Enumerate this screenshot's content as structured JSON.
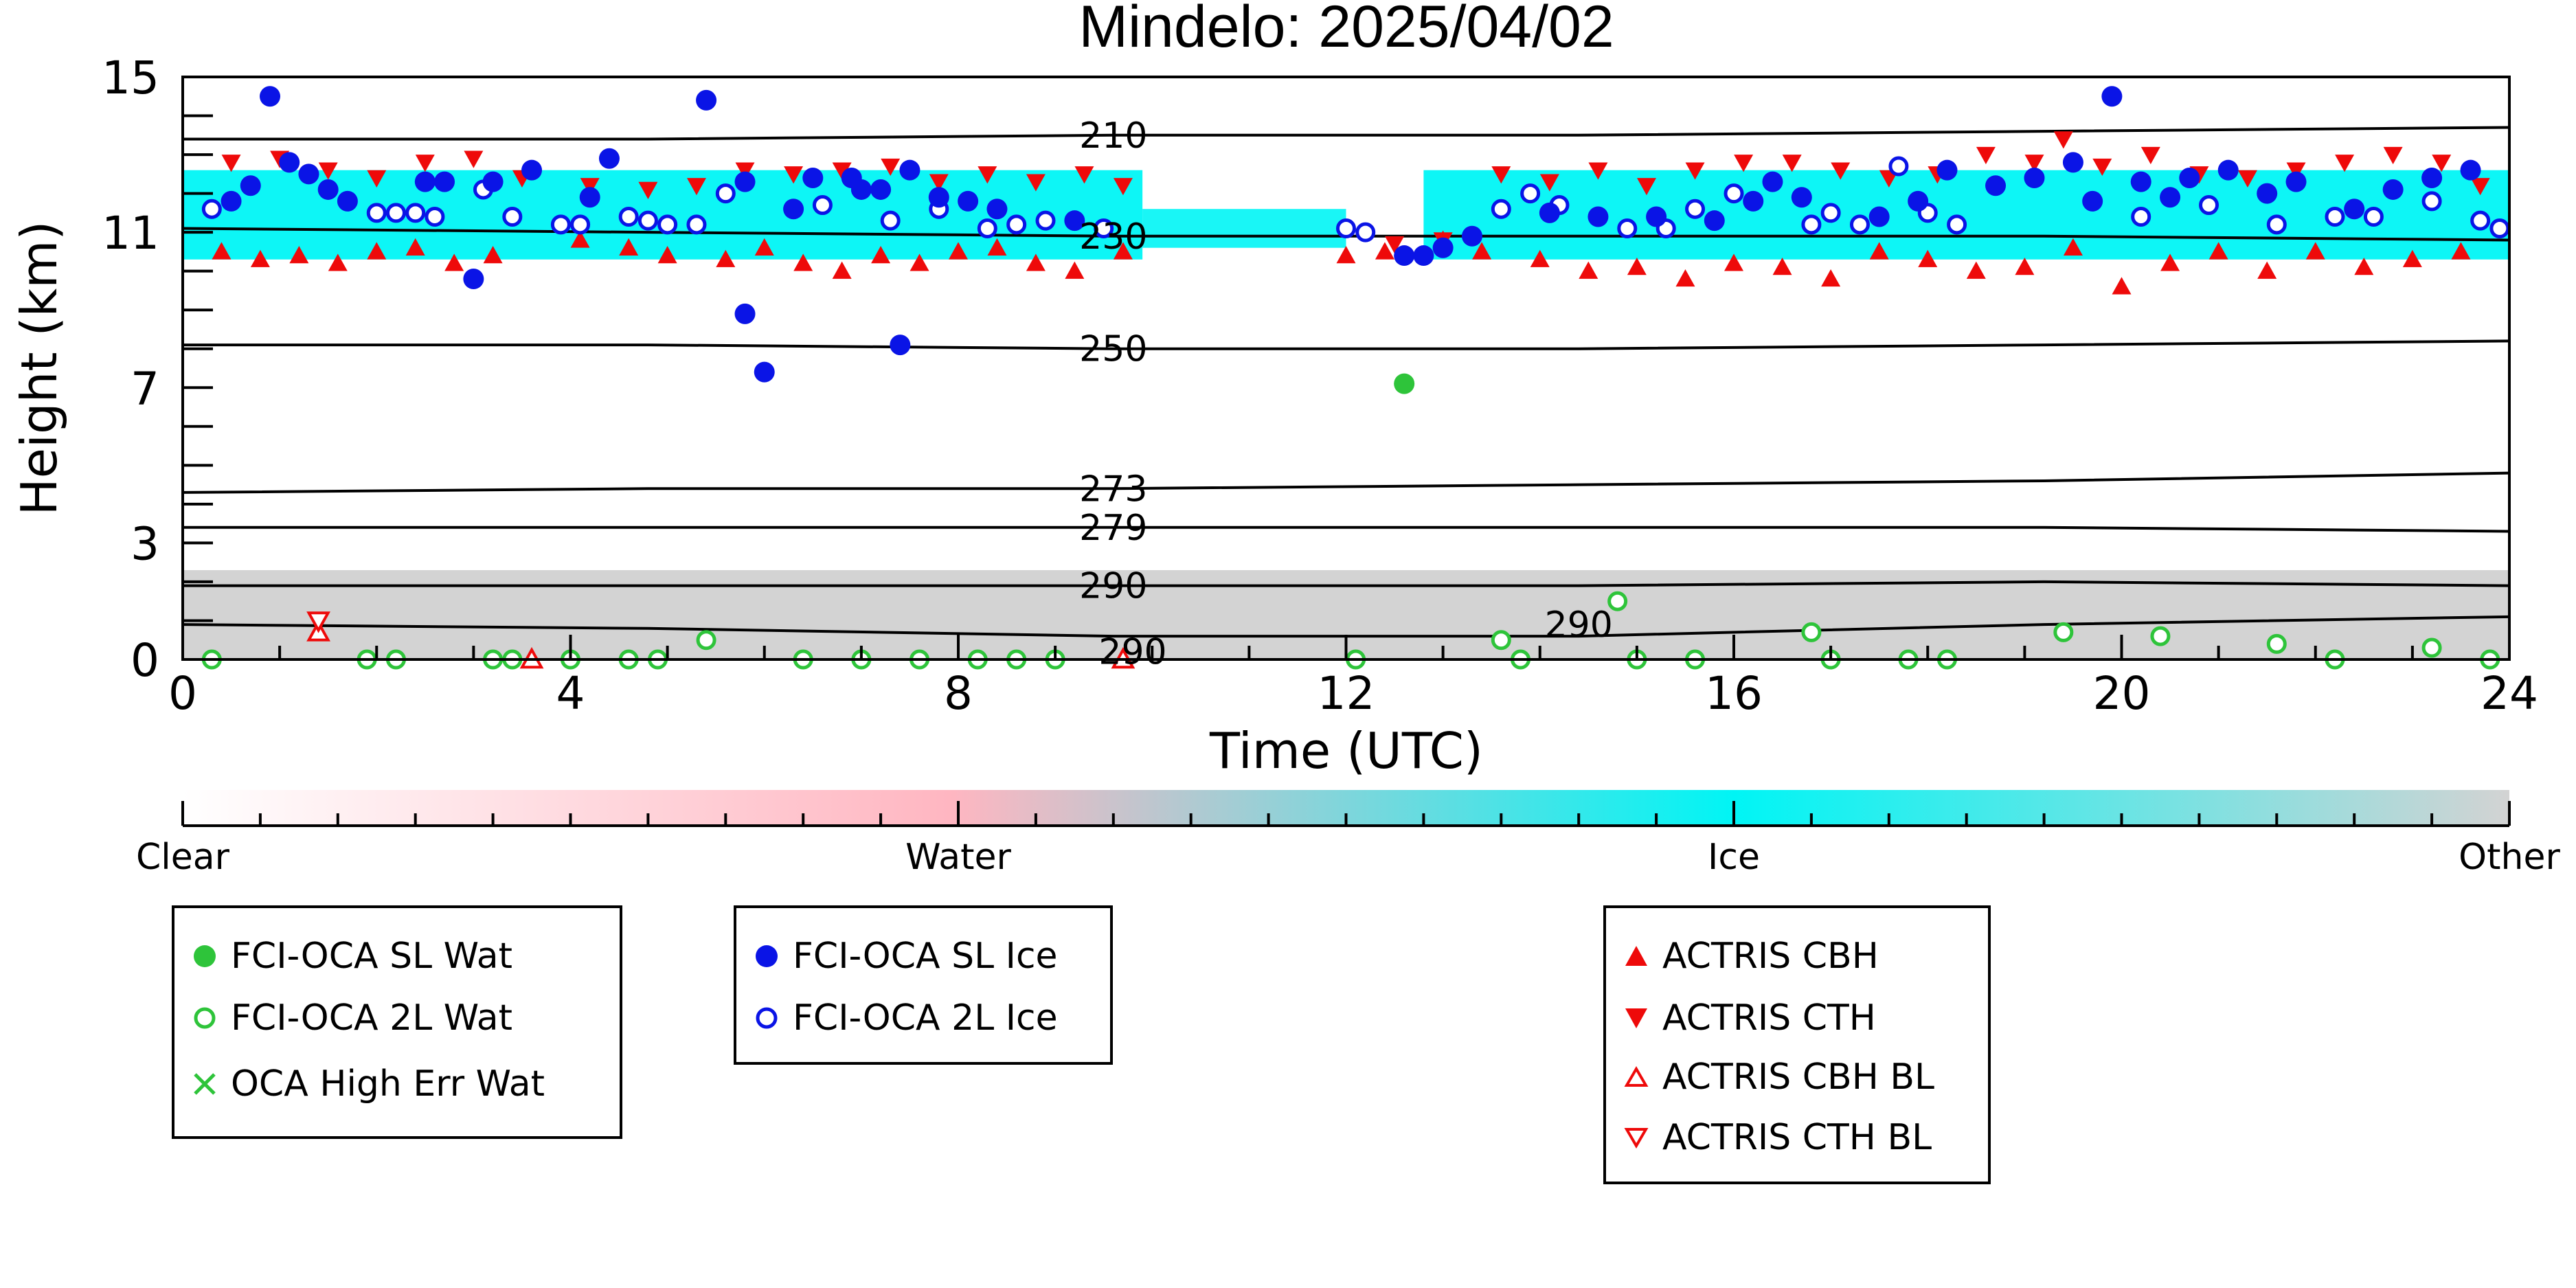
{
  "chart_data": {
    "type": "scatter",
    "title": "Mindelo: 2025/04/02",
    "xlabel": "Time (UTC)",
    "ylabel": "Height (km)",
    "xlim": [
      0,
      24
    ],
    "ylim": [
      0,
      15
    ],
    "xticks": [
      0,
      4,
      8,
      12,
      16,
      20,
      24
    ],
    "yticks": [
      0,
      3,
      7,
      11,
      15
    ],
    "grid": false,
    "background": {
      "ice_band_km": [
        10.3,
        12.6
      ],
      "low_gray_band_km": [
        0,
        2.3
      ]
    },
    "isotherms": [
      {
        "label": "210",
        "y": [
          13.4,
          13.4,
          13.5,
          13.5,
          13.6,
          13.7
        ]
      },
      {
        "label": "230",
        "y": [
          11.1,
          11.0,
          10.9,
          10.9,
          10.9,
          10.8
        ]
      },
      {
        "label": "250",
        "y": [
          8.1,
          8.1,
          8.0,
          8.0,
          8.1,
          8.2
        ]
      },
      {
        "label": "273",
        "y": [
          4.3,
          4.4,
          4.4,
          4.5,
          4.6,
          4.8
        ]
      },
      {
        "label": "279",
        "y": [
          3.4,
          3.4,
          3.4,
          3.4,
          3.4,
          3.3
        ]
      },
      {
        "label": "290",
        "y": [
          1.9,
          1.9,
          1.9,
          1.9,
          2.0,
          1.9
        ]
      },
      {
        "label": "290",
        "y": [
          0.9,
          0.8,
          0.6,
          0.6,
          0.9,
          1.1
        ]
      }
    ],
    "isotherm_x": [
      0,
      4.8,
      9.6,
      14.4,
      19.2,
      24
    ],
    "isotherm_label_x": [
      {
        "x": 9.6,
        "i": 0
      },
      {
        "x": 9.6,
        "i": 1
      },
      {
        "x": 9.6,
        "i": 2
      },
      {
        "x": 9.6,
        "i": 3
      },
      {
        "x": 9.6,
        "i": 4
      },
      {
        "x": 9.6,
        "i": 5
      },
      {
        "x": 9.8,
        "i": 6,
        "y": 0.2
      },
      {
        "x": 14.4,
        "i": 6,
        "y": 0.9
      }
    ],
    "series": [
      {
        "name": "FCI-OCA SL Wat",
        "marker": "filled-circle",
        "color": "#2ec43a",
        "points": [
          [
            12.6,
            7.1
          ]
        ]
      },
      {
        "name": "FCI-OCA 2L Wat",
        "marker": "open-circle",
        "color": "#2ec43a",
        "points": [
          [
            0.3,
            0.0
          ],
          [
            1.9,
            0.0
          ],
          [
            2.2,
            0.0
          ],
          [
            3.2,
            0.0
          ],
          [
            3.4,
            0.0
          ],
          [
            4.0,
            0.0
          ],
          [
            4.6,
            0.0
          ],
          [
            4.9,
            0.0
          ],
          [
            5.4,
            0.5
          ],
          [
            6.4,
            0.0
          ],
          [
            7.0,
            0.0
          ],
          [
            7.6,
            0.0
          ],
          [
            8.2,
            0.0
          ],
          [
            8.6,
            0.0
          ],
          [
            9.0,
            0.0
          ],
          [
            12.1,
            0.0
          ],
          [
            13.6,
            0.5
          ],
          [
            13.8,
            0.0
          ],
          [
            14.8,
            1.5
          ],
          [
            15.0,
            0.0
          ],
          [
            15.6,
            0.0
          ],
          [
            16.8,
            0.7
          ],
          [
            17.0,
            0.0
          ],
          [
            17.8,
            0.0
          ],
          [
            18.2,
            0.0
          ],
          [
            19.4,
            0.7
          ],
          [
            20.4,
            0.6
          ],
          [
            21.6,
            0.4
          ],
          [
            22.2,
            0.0
          ],
          [
            23.2,
            0.3
          ],
          [
            23.8,
            0.0
          ]
        ]
      },
      {
        "name": "OCA High Err Wat",
        "marker": "x",
        "color": "#2ec43a",
        "points": []
      },
      {
        "name": "FCI-OCA SL Ice",
        "marker": "filled-circle",
        "color": "#0a14e6",
        "points": [
          [
            0.5,
            11.8
          ],
          [
            0.7,
            12.2
          ],
          [
            0.9,
            14.5
          ],
          [
            1.1,
            12.8
          ],
          [
            1.3,
            12.5
          ],
          [
            1.5,
            12.1
          ],
          [
            1.7,
            11.8
          ],
          [
            2.5,
            12.3
          ],
          [
            2.7,
            12.3
          ],
          [
            3.0,
            9.8
          ],
          [
            3.2,
            12.3
          ],
          [
            3.6,
            12.6
          ],
          [
            4.2,
            11.9
          ],
          [
            4.4,
            12.9
          ],
          [
            5.4,
            14.4
          ],
          [
            5.8,
            12.3
          ],
          [
            5.8,
            8.9
          ],
          [
            6.0,
            7.4
          ],
          [
            6.3,
            11.6
          ],
          [
            6.5,
            12.4
          ],
          [
            6.9,
            12.4
          ],
          [
            7.0,
            12.1
          ],
          [
            7.2,
            12.1
          ],
          [
            7.4,
            8.1
          ],
          [
            7.5,
            12.6
          ],
          [
            7.8,
            11.9
          ],
          [
            8.1,
            11.8
          ],
          [
            8.4,
            11.6
          ],
          [
            9.2,
            11.3
          ],
          [
            12.6,
            10.4
          ],
          [
            12.8,
            10.4
          ],
          [
            13.0,
            10.6
          ],
          [
            13.3,
            10.9
          ],
          [
            14.1,
            11.5
          ],
          [
            14.6,
            11.4
          ],
          [
            15.2,
            11.4
          ],
          [
            15.8,
            11.3
          ],
          [
            16.2,
            11.8
          ],
          [
            16.4,
            12.3
          ],
          [
            16.7,
            11.9
          ],
          [
            17.5,
            11.4
          ],
          [
            17.9,
            11.8
          ],
          [
            18.2,
            12.6
          ],
          [
            18.7,
            12.2
          ],
          [
            19.1,
            12.4
          ],
          [
            19.5,
            12.8
          ],
          [
            19.7,
            11.8
          ],
          [
            19.9,
            14.5
          ],
          [
            20.2,
            12.3
          ],
          [
            20.5,
            11.9
          ],
          [
            20.7,
            12.4
          ],
          [
            21.1,
            12.6
          ],
          [
            21.5,
            12.0
          ],
          [
            21.8,
            12.3
          ],
          [
            22.4,
            11.6
          ],
          [
            22.8,
            12.1
          ],
          [
            23.2,
            12.4
          ],
          [
            23.6,
            12.6
          ]
        ]
      },
      {
        "name": "FCI-OCA 2L Ice",
        "marker": "open-circle",
        "color": "#0a14e6",
        "points": [
          [
            0.3,
            11.6
          ],
          [
            2.0,
            11.5
          ],
          [
            2.2,
            11.5
          ],
          [
            2.4,
            11.5
          ],
          [
            2.6,
            11.4
          ],
          [
            3.1,
            12.1
          ],
          [
            3.4,
            11.4
          ],
          [
            3.9,
            11.2
          ],
          [
            4.1,
            11.2
          ],
          [
            4.6,
            11.4
          ],
          [
            4.8,
            11.3
          ],
          [
            5.0,
            11.2
          ],
          [
            5.3,
            11.2
          ],
          [
            5.6,
            12.0
          ],
          [
            6.6,
            11.7
          ],
          [
            7.3,
            11.3
          ],
          [
            7.8,
            11.6
          ],
          [
            8.3,
            11.1
          ],
          [
            8.6,
            11.2
          ],
          [
            8.9,
            11.3
          ],
          [
            9.2,
            11.3
          ],
          [
            9.5,
            11.1
          ],
          [
            12.0,
            11.1
          ],
          [
            12.2,
            11.0
          ],
          [
            13.6,
            11.6
          ],
          [
            13.9,
            12.0
          ],
          [
            14.2,
            11.7
          ],
          [
            14.9,
            11.1
          ],
          [
            15.3,
            11.1
          ],
          [
            15.6,
            11.6
          ],
          [
            16.0,
            12.0
          ],
          [
            16.8,
            11.2
          ],
          [
            17.0,
            11.5
          ],
          [
            17.3,
            11.2
          ],
          [
            17.7,
            12.7
          ],
          [
            18.0,
            11.5
          ],
          [
            18.3,
            11.2
          ],
          [
            20.2,
            11.4
          ],
          [
            20.9,
            11.7
          ],
          [
            21.6,
            11.2
          ],
          [
            22.2,
            11.4
          ],
          [
            22.6,
            11.4
          ],
          [
            23.2,
            11.8
          ],
          [
            23.7,
            11.3
          ],
          [
            23.9,
            11.1
          ]
        ]
      },
      {
        "name": "ACTRIS CBH",
        "marker": "triangle-up",
        "color": "#ee0a0a",
        "points": [
          [
            0.4,
            10.5
          ],
          [
            0.8,
            10.3
          ],
          [
            1.2,
            10.4
          ],
          [
            1.6,
            10.2
          ],
          [
            2.0,
            10.5
          ],
          [
            2.4,
            10.6
          ],
          [
            2.8,
            10.2
          ],
          [
            3.2,
            10.4
          ],
          [
            4.1,
            10.8
          ],
          [
            4.6,
            10.6
          ],
          [
            5.0,
            10.4
          ],
          [
            5.6,
            10.3
          ],
          [
            6.0,
            10.6
          ],
          [
            6.4,
            10.2
          ],
          [
            6.8,
            10.0
          ],
          [
            7.2,
            10.4
          ],
          [
            7.6,
            10.2
          ],
          [
            8.0,
            10.5
          ],
          [
            8.4,
            10.6
          ],
          [
            8.8,
            10.2
          ],
          [
            9.2,
            10.0
          ],
          [
            9.7,
            10.5
          ],
          [
            12.0,
            10.4
          ],
          [
            12.4,
            10.5
          ],
          [
            13.0,
            10.8
          ],
          [
            13.4,
            10.5
          ],
          [
            14.0,
            10.3
          ],
          [
            14.5,
            10.0
          ],
          [
            15.0,
            10.1
          ],
          [
            15.5,
            9.8
          ],
          [
            16.0,
            10.2
          ],
          [
            16.5,
            10.1
          ],
          [
            17.0,
            9.8
          ],
          [
            17.5,
            10.5
          ],
          [
            18.0,
            10.3
          ],
          [
            18.5,
            10.0
          ],
          [
            19.0,
            10.1
          ],
          [
            19.5,
            10.6
          ],
          [
            20.0,
            9.6
          ],
          [
            20.5,
            10.2
          ],
          [
            21.0,
            10.5
          ],
          [
            21.5,
            10.0
          ],
          [
            22.0,
            10.5
          ],
          [
            22.5,
            10.1
          ],
          [
            23.0,
            10.3
          ],
          [
            23.5,
            10.5
          ]
        ]
      },
      {
        "name": "ACTRIS CTH",
        "marker": "triangle-down",
        "color": "#ee0a0a",
        "points": [
          [
            0.5,
            12.8
          ],
          [
            1.0,
            12.9
          ],
          [
            1.5,
            12.6
          ],
          [
            2.0,
            12.4
          ],
          [
            2.5,
            12.8
          ],
          [
            3.0,
            12.9
          ],
          [
            3.5,
            12.4
          ],
          [
            4.2,
            12.2
          ],
          [
            4.8,
            12.1
          ],
          [
            5.3,
            12.2
          ],
          [
            5.8,
            12.6
          ],
          [
            6.3,
            12.5
          ],
          [
            6.8,
            12.6
          ],
          [
            7.3,
            12.7
          ],
          [
            7.8,
            12.3
          ],
          [
            8.3,
            12.5
          ],
          [
            8.8,
            12.3
          ],
          [
            9.3,
            12.5
          ],
          [
            9.7,
            12.2
          ],
          [
            12.5,
            10.7
          ],
          [
            13.0,
            10.8
          ],
          [
            13.6,
            12.5
          ],
          [
            14.1,
            12.3
          ],
          [
            14.6,
            12.6
          ],
          [
            15.1,
            12.2
          ],
          [
            15.6,
            12.6
          ],
          [
            16.1,
            12.8
          ],
          [
            16.6,
            12.8
          ],
          [
            17.1,
            12.6
          ],
          [
            17.6,
            12.4
          ],
          [
            18.1,
            12.5
          ],
          [
            18.6,
            13.0
          ],
          [
            19.1,
            12.8
          ],
          [
            19.4,
            13.4
          ],
          [
            19.8,
            12.7
          ],
          [
            20.3,
            13.0
          ],
          [
            20.8,
            12.5
          ],
          [
            21.3,
            12.4
          ],
          [
            21.8,
            12.6
          ],
          [
            22.3,
            12.8
          ],
          [
            22.8,
            13.0
          ],
          [
            23.3,
            12.8
          ],
          [
            23.7,
            12.2
          ]
        ]
      },
      {
        "name": "ACTRIS CBH BL",
        "marker": "open-triangle-up",
        "color": "#ee0a0a",
        "points": [
          [
            1.4,
            0.7
          ],
          [
            3.6,
            0.0
          ],
          [
            9.7,
            0.0
          ]
        ]
      },
      {
        "name": "ACTRIS CTH BL",
        "marker": "open-triangle-down",
        "color": "#ee0a0a",
        "points": [
          [
            1.4,
            1.0
          ]
        ]
      }
    ],
    "colorbar": {
      "labels": [
        "Clear",
        "Water",
        "Ice",
        "Other"
      ],
      "colors": [
        "#ffffff",
        "#ffb6c1",
        "#00f5f5",
        "#d3d3d3"
      ]
    },
    "legend": {
      "groups": [
        [
          "FCI-OCA SL Wat",
          "FCI-OCA 2L Wat",
          "OCA High Err Wat"
        ],
        [
          "FCI-OCA SL Ice",
          "FCI-OCA 2L Ice"
        ],
        [
          "ACTRIS CBH",
          "ACTRIS CTH",
          "ACTRIS CBH BL",
          "ACTRIS CTH BL"
        ]
      ]
    }
  }
}
